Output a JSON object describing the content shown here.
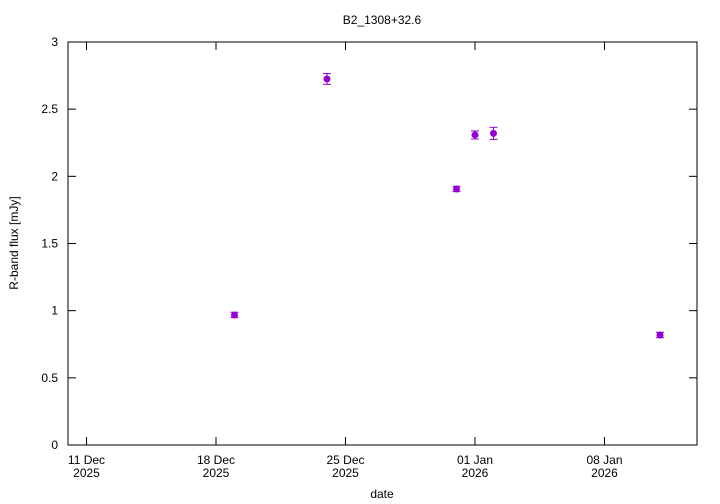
{
  "chart_data": {
    "type": "scatter",
    "title": "B2_1308+32.6",
    "xlabel": "date",
    "ylabel": "R-band flux [mJy]",
    "x": [
      "2025-12-19",
      "2025-12-24",
      "2025-12-31",
      "2026-01-01",
      "2026-01-02",
      "2026-01-11"
    ],
    "series": [
      {
        "color": "#9400d3",
        "values": [
          0.968,
          2.725,
          1.906,
          2.308,
          2.32,
          0.819
        ],
        "errors": [
          0.02,
          0.04,
          0.02,
          0.03,
          0.045,
          0.02
        ]
      }
    ],
    "xlim": [
      "2025-12-10",
      "2026-01-13"
    ],
    "xticks": [
      {
        "value": "2025-12-11",
        "label": [
          "11 Dec",
          "2025"
        ]
      },
      {
        "value": "2025-12-18",
        "label": [
          "18 Dec",
          "2025"
        ]
      },
      {
        "value": "2025-12-25",
        "label": [
          "25 Dec",
          "2025"
        ]
      },
      {
        "value": "2026-01-01",
        "label": [
          "01 Jan",
          "2026"
        ]
      },
      {
        "value": "2026-01-08",
        "label": [
          "08 Jan",
          "2026"
        ]
      }
    ],
    "ylim": [
      0,
      3
    ],
    "yticks": [
      0,
      0.5,
      1,
      1.5,
      2,
      2.5,
      3
    ]
  }
}
